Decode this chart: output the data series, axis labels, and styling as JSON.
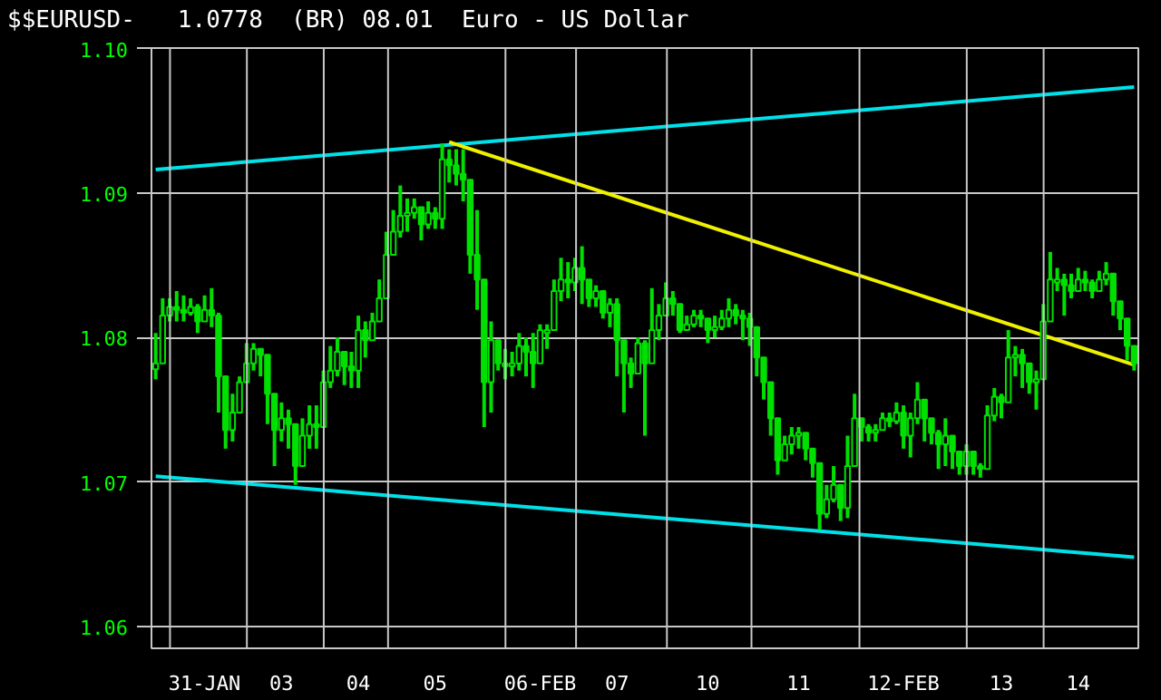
{
  "chart_data": {
    "type": "candlestick",
    "title": "$$EURUSD",
    "subtitle": "-   1.0778  (BR) 08.01  Euro - US Dollar",
    "grid": true,
    "ylim": [
      1.0585,
      1.1
    ],
    "yticks": [
      1.06,
      1.07,
      1.08,
      1.09,
      {
        "value": 1.1,
        "label": "1.10"
      }
    ],
    "categories": [
      null,
      null,
      null,
      null,
      null,
      null,
      null,
      "31-JAN",
      null,
      null,
      null,
      null,
      null,
      null,
      null,
      null,
      null,
      null,
      "03",
      null,
      null,
      null,
      null,
      null,
      null,
      null,
      null,
      null,
      null,
      "04",
      null,
      null,
      null,
      null,
      null,
      null,
      null,
      null,
      null,
      null,
      "05",
      null,
      null,
      null,
      null,
      null,
      null,
      null,
      null,
      null,
      null,
      null,
      null,
      null,
      null,
      "06-FEB",
      null,
      null,
      null,
      null,
      null,
      null,
      null,
      null,
      null,
      null,
      "07",
      null,
      null,
      null,
      null,
      null,
      null,
      null,
      null,
      null,
      null,
      null,
      null,
      "10",
      null,
      null,
      null,
      null,
      null,
      null,
      null,
      null,
      null,
      null,
      null,
      null,
      "11",
      null,
      null,
      null,
      null,
      null,
      null,
      null,
      null,
      null,
      null,
      null,
      null,
      null,
      null,
      "12-FEB",
      null,
      null,
      null,
      null,
      null,
      null,
      null,
      null,
      null,
      null,
      null,
      null,
      null,
      "13",
      null,
      null,
      null,
      null,
      null,
      null,
      null,
      null,
      null,
      null,
      "14",
      null,
      null,
      null,
      null,
      null,
      null,
      null,
      null
    ],
    "series": [
      {
        "color": "#00e000",
        "ohlc": [
          [
            1.0778,
            1.0803,
            1.0771,
            1.0782
          ],
          [
            1.0782,
            1.0827,
            1.0782,
            1.0815
          ],
          [
            1.0815,
            1.0827,
            1.0811,
            1.0821
          ],
          [
            1.0821,
            1.0832,
            1.0811,
            1.0819
          ],
          [
            1.0819,
            1.0829,
            1.0811,
            1.0817
          ],
          [
            1.0817,
            1.0827,
            1.0815,
            1.0821
          ],
          [
            1.0821,
            1.0823,
            1.0803,
            1.0811
          ],
          [
            1.0811,
            1.0829,
            1.0811,
            1.0819
          ],
          [
            1.0819,
            1.0834,
            1.0807,
            1.0815
          ],
          [
            1.0815,
            1.0817,
            1.0748,
            1.0773
          ],
          [
            1.0773,
            1.0773,
            1.0723,
            1.0736
          ],
          [
            1.0736,
            1.0761,
            1.0728,
            1.0748
          ],
          [
            1.0748,
            1.0773,
            1.0748,
            1.0769
          ],
          [
            1.0769,
            1.0796,
            1.0769,
            1.0782
          ],
          [
            1.0782,
            1.0796,
            1.0777,
            1.0792
          ],
          [
            1.0792,
            1.0792,
            1.0773,
            1.0788
          ],
          [
            1.0788,
            1.0788,
            1.074,
            1.0761
          ],
          [
            1.0761,
            1.0761,
            1.0711,
            1.0736
          ],
          [
            1.0736,
            1.0755,
            1.0728,
            1.0744
          ],
          [
            1.0744,
            1.075,
            1.0723,
            1.074
          ],
          [
            1.074,
            1.074,
            1.0698,
            1.0711
          ],
          [
            1.0711,
            1.0744,
            1.0711,
            1.0732
          ],
          [
            1.0732,
            1.0753,
            1.0723,
            1.074
          ],
          [
            1.074,
            1.0753,
            1.0723,
            1.0738
          ],
          [
            1.0738,
            1.0777,
            1.0738,
            1.0769
          ],
          [
            1.0769,
            1.0794,
            1.0765,
            1.0777
          ],
          [
            1.0777,
            1.08,
            1.0773,
            1.079
          ],
          [
            1.079,
            1.079,
            1.0767,
            1.078
          ],
          [
            1.078,
            1.079,
            1.0765,
            1.0777
          ],
          [
            1.0777,
            1.0815,
            1.0765,
            1.0805
          ],
          [
            1.0805,
            1.0811,
            1.0786,
            1.0798
          ],
          [
            1.0798,
            1.0817,
            1.0798,
            1.0811
          ],
          [
            1.0811,
            1.084,
            1.0811,
            1.0827
          ],
          [
            1.0827,
            1.0873,
            1.0827,
            1.0857
          ],
          [
            1.0857,
            1.0888,
            1.0857,
            1.0873
          ],
          [
            1.0873,
            1.0905,
            1.0869,
            1.0884
          ],
          [
            1.0884,
            1.0896,
            1.0873,
            1.0886
          ],
          [
            1.0886,
            1.0896,
            1.0882,
            1.089
          ],
          [
            1.089,
            1.089,
            1.0867,
            1.0878
          ],
          [
            1.0878,
            1.0894,
            1.0875,
            1.0886
          ],
          [
            1.0886,
            1.089,
            1.0875,
            1.0882
          ],
          [
            1.0882,
            1.0934,
            1.0875,
            1.0923
          ],
          [
            1.0923,
            1.093,
            1.0907,
            1.0919
          ],
          [
            1.0919,
            1.093,
            1.0905,
            1.0913
          ],
          [
            1.0913,
            1.093,
            1.0894,
            1.0909
          ],
          [
            1.0909,
            1.0909,
            1.0844,
            1.0857
          ],
          [
            1.0857,
            1.0888,
            1.0819,
            1.084
          ],
          [
            1.084,
            1.084,
            1.0738,
            1.0769
          ],
          [
            1.0769,
            1.0811,
            1.0748,
            1.0798
          ],
          [
            1.0798,
            1.0798,
            1.0777,
            1.0782
          ],
          [
            1.0782,
            1.0792,
            1.0771,
            1.078
          ],
          [
            1.078,
            1.079,
            1.0773,
            1.0782
          ],
          [
            1.0782,
            1.0803,
            1.0777,
            1.0794
          ],
          [
            1.0794,
            1.08,
            1.0773,
            1.079
          ],
          [
            1.079,
            1.0803,
            1.0765,
            1.0782
          ],
          [
            1.0782,
            1.0809,
            1.0782,
            1.0805
          ],
          [
            1.0803,
            1.0809,
            1.0792,
            1.0805
          ],
          [
            1.0805,
            1.084,
            1.0805,
            1.0832
          ],
          [
            1.0832,
            1.0855,
            1.0825,
            1.084
          ],
          [
            1.084,
            1.0852,
            1.0827,
            1.0838
          ],
          [
            1.0838,
            1.0855,
            1.0832,
            1.0848
          ],
          [
            1.0848,
            1.0863,
            1.0823,
            1.084
          ],
          [
            1.084,
            1.084,
            1.0821,
            1.0827
          ],
          [
            1.0827,
            1.0836,
            1.0821,
            1.0832
          ],
          [
            1.0832,
            1.0832,
            1.0813,
            1.0817
          ],
          [
            1.0817,
            1.0827,
            1.0807,
            1.0823
          ],
          [
            1.0823,
            1.0827,
            1.0773,
            1.0798
          ],
          [
            1.0798,
            1.0798,
            1.0748,
            1.0782
          ],
          [
            1.0782,
            1.0786,
            1.0765,
            1.0775
          ],
          [
            1.0775,
            1.08,
            1.0775,
            1.0796
          ],
          [
            1.0796,
            1.0798,
            1.0732,
            1.0782
          ],
          [
            1.0782,
            1.0834,
            1.0782,
            1.0805
          ],
          [
            1.0805,
            1.0823,
            1.0798,
            1.0815
          ],
          [
            1.0815,
            1.0838,
            1.0815,
            1.0827
          ],
          [
            1.0827,
            1.0832,
            1.0815,
            1.0823
          ],
          [
            1.0823,
            1.0823,
            1.0803,
            1.0805
          ],
          [
            1.0805,
            1.0815,
            1.0805,
            1.0809
          ],
          [
            1.0809,
            1.0819,
            1.0807,
            1.0815
          ],
          [
            1.0815,
            1.0819,
            1.0807,
            1.0813
          ],
          [
            1.0813,
            1.0813,
            1.0796,
            1.0805
          ],
          [
            1.0805,
            1.0815,
            1.08,
            1.0807
          ],
          [
            1.0807,
            1.0819,
            1.0805,
            1.0813
          ],
          [
            1.0813,
            1.0827,
            1.0807,
            1.0819
          ],
          [
            1.0819,
            1.0823,
            1.0809,
            1.0815
          ],
          [
            1.0815,
            1.0819,
            1.0798,
            1.0813
          ],
          [
            1.0813,
            1.0817,
            1.0794,
            1.0807
          ],
          [
            1.0807,
            1.0807,
            1.0773,
            1.0786
          ],
          [
            1.0786,
            1.0786,
            1.0757,
            1.0769
          ],
          [
            1.0769,
            1.0769,
            1.0732,
            1.0744
          ],
          [
            1.0744,
            1.0744,
            1.0705,
            1.0715
          ],
          [
            1.0715,
            1.0732,
            1.0715,
            1.0726
          ],
          [
            1.0726,
            1.0738,
            1.0719,
            1.0732
          ],
          [
            1.0732,
            1.0738,
            1.0723,
            1.0734
          ],
          [
            1.0734,
            1.0734,
            1.0715,
            1.0723
          ],
          [
            1.0723,
            1.0723,
            1.0703,
            1.0713
          ],
          [
            1.0713,
            1.0713,
            1.0667,
            1.0678
          ],
          [
            1.0678,
            1.0698,
            1.0675,
            1.0688
          ],
          [
            1.0688,
            1.0711,
            1.0686,
            1.0698
          ],
          [
            1.0698,
            1.0698,
            1.0673,
            1.0682
          ],
          [
            1.0682,
            1.0732,
            1.0675,
            1.0711
          ],
          [
            1.0711,
            1.0761,
            1.0711,
            1.0744
          ],
          [
            1.0744,
            1.0744,
            1.0728,
            1.0738
          ],
          [
            1.0738,
            1.074,
            1.0728,
            1.0734
          ],
          [
            1.0734,
            1.074,
            1.0728,
            1.0736
          ],
          [
            1.0736,
            1.0748,
            1.0736,
            1.0744
          ],
          [
            1.0744,
            1.0748,
            1.0738,
            1.0742
          ],
          [
            1.0742,
            1.0755,
            1.074,
            1.0748
          ],
          [
            1.0748,
            1.0753,
            1.0723,
            1.0732
          ],
          [
            1.0732,
            1.0748,
            1.0717,
            1.0744
          ],
          [
            1.0744,
            1.0769,
            1.074,
            1.0757
          ],
          [
            1.0757,
            1.0757,
            1.0728,
            1.0744
          ],
          [
            1.0744,
            1.0744,
            1.0726,
            1.0734
          ],
          [
            1.0734,
            1.0736,
            1.0709,
            1.0726
          ],
          [
            1.0726,
            1.0744,
            1.0711,
            1.0732
          ],
          [
            1.0732,
            1.0732,
            1.0709,
            1.0721
          ],
          [
            1.0721,
            1.0721,
            1.0705,
            1.0711
          ],
          [
            1.0711,
            1.0726,
            1.0705,
            1.0721
          ],
          [
            1.0721,
            1.0721,
            1.0705,
            1.0711
          ],
          [
            1.0711,
            1.0713,
            1.0703,
            1.0709
          ],
          [
            1.0709,
            1.0753,
            1.0709,
            1.0746
          ],
          [
            1.0746,
            1.0765,
            1.0742,
            1.0759
          ],
          [
            1.0759,
            1.0761,
            1.0744,
            1.0755
          ],
          [
            1.0755,
            1.0805,
            1.0755,
            1.0786
          ],
          [
            1.0786,
            1.0794,
            1.0773,
            1.0788
          ],
          [
            1.0788,
            1.0792,
            1.0765,
            1.0782
          ],
          [
            1.0782,
            1.0782,
            1.0761,
            1.0769
          ],
          [
            1.0769,
            1.0777,
            1.075,
            1.0771
          ],
          [
            1.0771,
            1.0823,
            1.0771,
            1.0811
          ],
          [
            1.0811,
            1.0859,
            1.0811,
            1.084
          ],
          [
            1.0838,
            1.0848,
            1.0832,
            1.084
          ],
          [
            1.084,
            1.0844,
            1.0815,
            1.0836
          ],
          [
            1.0836,
            1.0844,
            1.0827,
            1.0832
          ],
          [
            1.0832,
            1.0848,
            1.0832,
            1.084
          ],
          [
            1.084,
            1.0846,
            1.0832,
            1.0838
          ],
          [
            1.0838,
            1.084,
            1.0827,
            1.0832
          ],
          [
            1.0832,
            1.0846,
            1.0832,
            1.084
          ],
          [
            1.084,
            1.0852,
            1.0836,
            1.0844
          ],
          [
            1.0844,
            1.0844,
            1.0815,
            1.0825
          ],
          [
            1.0825,
            1.0825,
            1.0805,
            1.0813
          ],
          [
            1.0813,
            1.0813,
            1.0784,
            1.0794
          ],
          [
            1.0794,
            1.0794,
            1.0777,
            1.0782
          ]
        ]
      },
      {
        "type": "line",
        "color": "#00e0e8",
        "values": [
          1.0916,
          null,
          null,
          null,
          null,
          null,
          null,
          null,
          null,
          null,
          null,
          null,
          null,
          null,
          null,
          null,
          null,
          null,
          null,
          null,
          null,
          null,
          null,
          null,
          null,
          null,
          null,
          null,
          null,
          null,
          null,
          null,
          null,
          null,
          null,
          null,
          null,
          null,
          null,
          null,
          null,
          null,
          null,
          null,
          null,
          null,
          null,
          null,
          null,
          null,
          null,
          null,
          null,
          null,
          null,
          null,
          null,
          null,
          null,
          null,
          null,
          null,
          null,
          null,
          null,
          null,
          null,
          null,
          null,
          null,
          null,
          null,
          null,
          null,
          null,
          null,
          null,
          null,
          null,
          null,
          null,
          null,
          null,
          null,
          null,
          null,
          null,
          null,
          null,
          null,
          null,
          null,
          null,
          null,
          null,
          null,
          null,
          null,
          null,
          null,
          null,
          null,
          null,
          null,
          null,
          null,
          null,
          null,
          null,
          null,
          null,
          null,
          null,
          null,
          null,
          null,
          null,
          null,
          null,
          null,
          null,
          null,
          null,
          null,
          null,
          null,
          null,
          null,
          null,
          null,
          null,
          null,
          null,
          null,
          null,
          null,
          null,
          null,
          null,
          null,
          1.0973
        ]
      },
      {
        "type": "line",
        "color": "#00e0e8",
        "values": [
          1.0704,
          null,
          null,
          null,
          null,
          null,
          null,
          null,
          null,
          null,
          null,
          null,
          null,
          null,
          null,
          null,
          null,
          null,
          null,
          null,
          null,
          null,
          null,
          null,
          null,
          null,
          null,
          null,
          null,
          null,
          null,
          null,
          null,
          null,
          null,
          null,
          null,
          null,
          null,
          null,
          null,
          null,
          null,
          null,
          null,
          null,
          null,
          null,
          null,
          null,
          null,
          null,
          null,
          null,
          null,
          null,
          null,
          null,
          null,
          null,
          null,
          null,
          null,
          null,
          null,
          null,
          null,
          null,
          null,
          null,
          null,
          null,
          null,
          null,
          null,
          null,
          null,
          null,
          null,
          null,
          null,
          null,
          null,
          null,
          null,
          null,
          null,
          null,
          null,
          null,
          null,
          null,
          null,
          null,
          null,
          null,
          null,
          null,
          null,
          null,
          null,
          null,
          null,
          null,
          null,
          null,
          null,
          null,
          null,
          null,
          null,
          null,
          null,
          null,
          null,
          null,
          null,
          null,
          null,
          null,
          null,
          null,
          null,
          null,
          null,
          null,
          null,
          null,
          null,
          null,
          null,
          null,
          null,
          null,
          null,
          null,
          null,
          null,
          null,
          null,
          1.0648
        ]
      },
      {
        "type": "line",
        "color": "#f0f000",
        "values": [
          null,
          null,
          null,
          null,
          null,
          null,
          null,
          null,
          null,
          null,
          null,
          null,
          null,
          null,
          null,
          null,
          null,
          null,
          null,
          null,
          null,
          null,
          null,
          null,
          null,
          null,
          null,
          null,
          null,
          null,
          null,
          null,
          null,
          null,
          null,
          null,
          null,
          null,
          null,
          null,
          null,
          null,
          1.0935,
          null,
          null,
          null,
          null,
          null,
          null,
          null,
          null,
          null,
          null,
          null,
          null,
          null,
          null,
          null,
          null,
          null,
          null,
          null,
          null,
          null,
          null,
          null,
          null,
          null,
          null,
          null,
          null,
          null,
          null,
          null,
          null,
          null,
          null,
          null,
          null,
          null,
          null,
          null,
          null,
          null,
          null,
          null,
          null,
          null,
          null,
          null,
          null,
          null,
          null,
          null,
          null,
          null,
          null,
          null,
          null,
          null,
          null,
          null,
          null,
          null,
          null,
          null,
          null,
          null,
          null,
          null,
          null,
          null,
          null,
          null,
          null,
          null,
          null,
          null,
          null,
          null,
          null,
          null,
          null,
          null,
          null,
          null,
          null,
          null,
          null,
          null,
          null,
          null,
          null,
          null,
          null,
          null,
          null,
          null,
          null,
          null,
          1.0781
        ]
      }
    ]
  }
}
